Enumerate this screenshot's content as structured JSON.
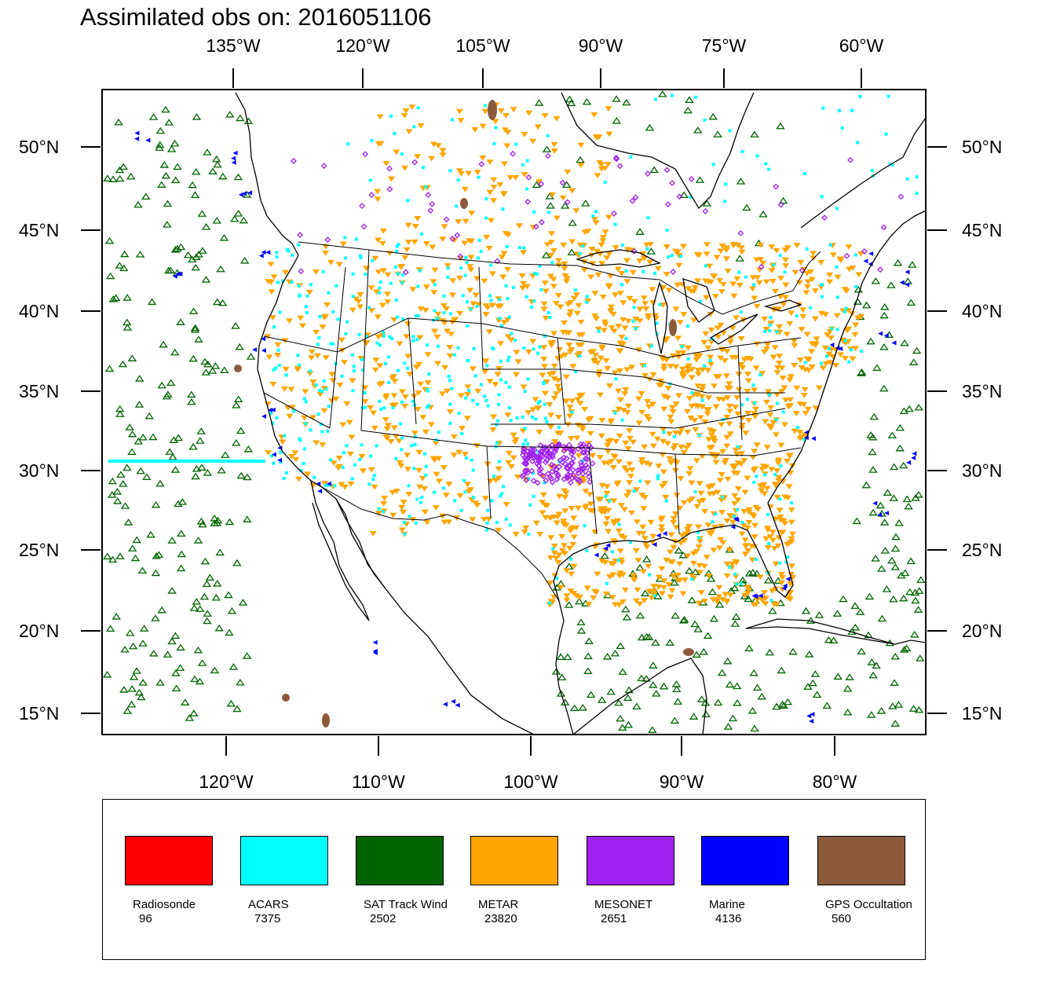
{
  "title": "Assimilated obs on: 2016051106",
  "map": {
    "lon_range": [
      -128,
      -74
    ],
    "lat_range": [
      14,
      54
    ],
    "top_lon_labels": [
      "135°W",
      "120°W",
      "105°W",
      "90°W",
      "75°W",
      "60°W"
    ],
    "top_lon_values": [
      -135,
      -120,
      -105,
      -90,
      -75,
      -60
    ],
    "bottom_lon_labels": [
      "120°W",
      "110°W",
      "100°W",
      "90°W",
      "80°W"
    ],
    "bottom_lon_values": [
      -120,
      -110,
      -100,
      -90,
      -80
    ],
    "lat_labels": [
      "50°N",
      "45°N",
      "40°N",
      "35°N",
      "30°N",
      "25°N",
      "20°N",
      "15°N"
    ],
    "lat_values": [
      50,
      45,
      40,
      35,
      30,
      25,
      20,
      15
    ]
  },
  "legend": {
    "items": [
      {
        "name": "Radiosonde",
        "count": "96",
        "color": "#ff0000"
      },
      {
        "name": "ACARS",
        "count": "7375",
        "color": "#00ffff"
      },
      {
        "name": "SAT Track Wind",
        "count": "2502",
        "color": "#006400"
      },
      {
        "name": "METAR",
        "count": "23820",
        "color": "#ffa500"
      },
      {
        "name": "MESONET",
        "count": "2651",
        "color": "#a020f0"
      },
      {
        "name": "Marine",
        "count": "4136",
        "color": "#0000ff"
      },
      {
        "name": "GPS Occultation",
        "count": "560",
        "color": "#8b5a3c"
      }
    ]
  },
  "colors": {
    "frame": "#000000",
    "coastline": "#000000"
  }
}
